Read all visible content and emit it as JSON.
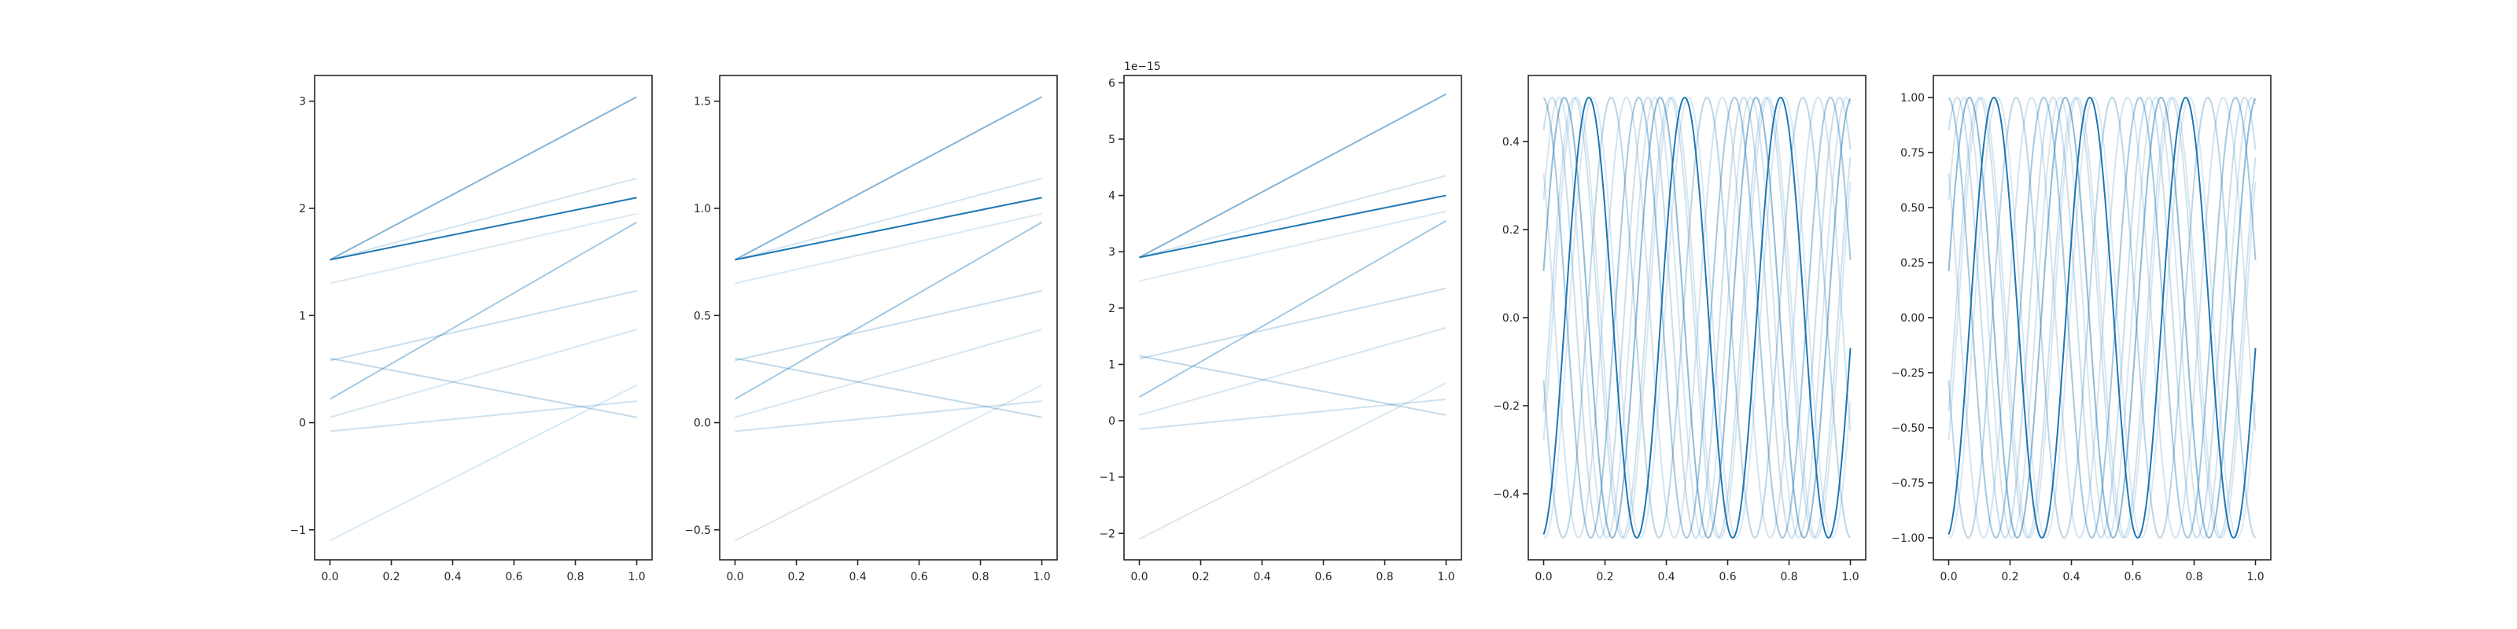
{
  "chart_data": [
    {
      "type": "line",
      "xlim": [
        -0.05,
        1.05
      ],
      "ylim": [
        -1.28,
        3.24
      ],
      "xticks": [
        {
          "v": 0,
          "label": "0.0"
        },
        {
          "v": 0.2,
          "label": "0.2"
        },
        {
          "v": 0.4,
          "label": "0.4"
        },
        {
          "v": 0.6,
          "label": "0.6"
        },
        {
          "v": 0.8,
          "label": "0.8"
        },
        {
          "v": 1,
          "label": "1.0"
        }
      ],
      "yticks": [
        {
          "v": -1,
          "label": "−1"
        },
        {
          "v": 0,
          "label": "0"
        },
        {
          "v": 1,
          "label": "1"
        },
        {
          "v": 2,
          "label": "2"
        },
        {
          "v": 3,
          "label": "3"
        }
      ],
      "offset_label": "",
      "series": [
        {
          "x": [
            0,
            1
          ],
          "y": [
            -1.1,
            0.35
          ],
          "opacity": 0.16
        },
        {
          "x": [
            0,
            1
          ],
          "y": [
            -0.08,
            0.2
          ],
          "opacity": 0.22
        },
        {
          "x": [
            0,
            1
          ],
          "y": [
            0.6,
            0.05
          ],
          "opacity": 0.28
        },
        {
          "x": [
            0,
            1
          ],
          "y": [
            0.05,
            0.87
          ],
          "opacity": 0.18
        },
        {
          "x": [
            0,
            1
          ],
          "y": [
            0.58,
            1.23
          ],
          "opacity": 0.24
        },
        {
          "x": [
            0,
            1
          ],
          "y": [
            1.3,
            1.95
          ],
          "opacity": 0.16
        },
        {
          "x": [
            0,
            1
          ],
          "y": [
            1.52,
            2.28
          ],
          "opacity": 0.2
        },
        {
          "x": [
            0,
            1
          ],
          "y": [
            0.22,
            1.87
          ],
          "opacity": 0.4
        },
        {
          "x": [
            0,
            1
          ],
          "y": [
            1.52,
            3.04
          ],
          "opacity": 0.55
        },
        {
          "x": [
            0,
            1
          ],
          "y": [
            1.52,
            2.1
          ],
          "opacity": 1.0
        }
      ]
    },
    {
      "type": "line",
      "xlim": [
        -0.05,
        1.05
      ],
      "ylim": [
        -0.64,
        1.62
      ],
      "xticks": [
        {
          "v": 0,
          "label": "0.0"
        },
        {
          "v": 0.2,
          "label": "0.2"
        },
        {
          "v": 0.4,
          "label": "0.4"
        },
        {
          "v": 0.6,
          "label": "0.6"
        },
        {
          "v": 0.8,
          "label": "0.8"
        },
        {
          "v": 1,
          "label": "1.0"
        }
      ],
      "yticks": [
        {
          "v": -0.5,
          "label": "−0.5"
        },
        {
          "v": 0,
          "label": "0.0"
        },
        {
          "v": 0.5,
          "label": "0.5"
        },
        {
          "v": 1,
          "label": "1.0"
        },
        {
          "v": 1.5,
          "label": "1.5"
        }
      ],
      "offset_label": "",
      "series": [
        {
          "x": [
            0,
            1
          ],
          "y": [
            -0.55,
            0.175
          ],
          "opacity": 0.16
        },
        {
          "x": [
            0,
            1
          ],
          "y": [
            -0.04,
            0.1
          ],
          "opacity": 0.22
        },
        {
          "x": [
            0,
            1
          ],
          "y": [
            0.3,
            0.025
          ],
          "opacity": 0.28
        },
        {
          "x": [
            0,
            1
          ],
          "y": [
            0.025,
            0.435
          ],
          "opacity": 0.18
        },
        {
          "x": [
            0,
            1
          ],
          "y": [
            0.29,
            0.615
          ],
          "opacity": 0.24
        },
        {
          "x": [
            0,
            1
          ],
          "y": [
            0.65,
            0.975
          ],
          "opacity": 0.16
        },
        {
          "x": [
            0,
            1
          ],
          "y": [
            0.76,
            1.14
          ],
          "opacity": 0.2
        },
        {
          "x": [
            0,
            1
          ],
          "y": [
            0.11,
            0.935
          ],
          "opacity": 0.4
        },
        {
          "x": [
            0,
            1
          ],
          "y": [
            0.76,
            1.52
          ],
          "opacity": 0.55
        },
        {
          "x": [
            0,
            1
          ],
          "y": [
            0.76,
            1.05
          ],
          "opacity": 1.0
        }
      ]
    },
    {
      "type": "line",
      "xlim": [
        -0.05,
        1.05
      ],
      "ylim": [
        -2.47,
        6.13
      ],
      "xticks": [
        {
          "v": 0,
          "label": "0.0"
        },
        {
          "v": 0.2,
          "label": "0.2"
        },
        {
          "v": 0.4,
          "label": "0.4"
        },
        {
          "v": 0.6,
          "label": "0.6"
        },
        {
          "v": 0.8,
          "label": "0.8"
        },
        {
          "v": 1,
          "label": "1.0"
        }
      ],
      "yticks": [
        {
          "v": -2,
          "label": "−2"
        },
        {
          "v": -1,
          "label": "−1"
        },
        {
          "v": 0,
          "label": "0"
        },
        {
          "v": 1,
          "label": "1"
        },
        {
          "v": 2,
          "label": "2"
        },
        {
          "v": 3,
          "label": "3"
        },
        {
          "v": 4,
          "label": "4"
        },
        {
          "v": 5,
          "label": "5"
        },
        {
          "v": 6,
          "label": "6"
        }
      ],
      "offset_label": "1e−15",
      "series": [
        {
          "x": [
            0,
            1
          ],
          "y": [
            -2.1,
            0.67
          ],
          "opacity": 0.16
        },
        {
          "x": [
            0,
            1
          ],
          "y": [
            -0.15,
            0.38
          ],
          "opacity": 0.22
        },
        {
          "x": [
            0,
            1
          ],
          "y": [
            1.15,
            0.1
          ],
          "opacity": 0.28
        },
        {
          "x": [
            0,
            1
          ],
          "y": [
            0.1,
            1.65
          ],
          "opacity": 0.18
        },
        {
          "x": [
            0,
            1
          ],
          "y": [
            1.1,
            2.35
          ],
          "opacity": 0.24
        },
        {
          "x": [
            0,
            1
          ],
          "y": [
            2.48,
            3.72
          ],
          "opacity": 0.16
        },
        {
          "x": [
            0,
            1
          ],
          "y": [
            2.9,
            4.35
          ],
          "opacity": 0.2
        },
        {
          "x": [
            0,
            1
          ],
          "y": [
            0.42,
            3.55
          ],
          "opacity": 0.4
        },
        {
          "x": [
            0,
            1
          ],
          "y": [
            2.9,
            5.8
          ],
          "opacity": 0.55
        },
        {
          "x": [
            0,
            1
          ],
          "y": [
            2.9,
            4.0
          ],
          "opacity": 1.0
        }
      ]
    },
    {
      "type": "line",
      "xlim": [
        -0.05,
        1.05
      ],
      "ylim": [
        -0.55,
        0.55
      ],
      "xticks": [
        {
          "v": 0,
          "label": "0.0"
        },
        {
          "v": 0.2,
          "label": "0.2"
        },
        {
          "v": 0.4,
          "label": "0.4"
        },
        {
          "v": 0.6,
          "label": "0.6"
        },
        {
          "v": 0.8,
          "label": "0.8"
        },
        {
          "v": 1,
          "label": "1.0"
        }
      ],
      "yticks": [
        {
          "v": -0.4,
          "label": "−0.4"
        },
        {
          "v": -0.2,
          "label": "−0.2"
        },
        {
          "v": 0,
          "label": "0.0"
        },
        {
          "v": 0.2,
          "label": "0.2"
        },
        {
          "v": 0.4,
          "label": "0.4"
        }
      ],
      "offset_label": "",
      "sine": {
        "amp": 0.5,
        "freq": 3.2,
        "phases": [
          {
            "x0": 0.46,
            "opacity": 1.0
          },
          {
            "x0": 0.38,
            "opacity": 0.5
          },
          {
            "x0": 0.31,
            "opacity": 0.4
          },
          {
            "x0": 0.22,
            "opacity": 0.3
          },
          {
            "x0": 0.1,
            "opacity": 0.22
          },
          {
            "x0": 0.05,
            "opacity": 0.18
          },
          {
            "x0": 0.16,
            "opacity": 0.16
          },
          {
            "x0": 0.27,
            "opacity": 0.2
          },
          {
            "x0": 0.34,
            "opacity": 0.24
          },
          {
            "x0": 0.42,
            "opacity": 0.18
          }
        ]
      }
    },
    {
      "type": "line",
      "xlim": [
        -0.05,
        1.05
      ],
      "ylim": [
        -1.1,
        1.1
      ],
      "xticks": [
        {
          "v": 0,
          "label": "0.0"
        },
        {
          "v": 0.2,
          "label": "0.2"
        },
        {
          "v": 0.4,
          "label": "0.4"
        },
        {
          "v": 0.6,
          "label": "0.6"
        },
        {
          "v": 0.8,
          "label": "0.8"
        },
        {
          "v": 1,
          "label": "1.0"
        }
      ],
      "yticks": [
        {
          "v": -1,
          "label": "−1.00"
        },
        {
          "v": -0.75,
          "label": "−0.75"
        },
        {
          "v": -0.5,
          "label": "−0.50"
        },
        {
          "v": -0.25,
          "label": "−0.25"
        },
        {
          "v": 0,
          "label": "0.00"
        },
        {
          "v": 0.25,
          "label": "0.25"
        },
        {
          "v": 0.5,
          "label": "0.50"
        },
        {
          "v": 0.75,
          "label": "0.75"
        },
        {
          "v": 1,
          "label": "1.00"
        }
      ],
      "offset_label": "",
      "sine": {
        "amp": 1.0,
        "freq": 3.2,
        "phases": [
          {
            "x0": 0.46,
            "opacity": 1.0
          },
          {
            "x0": 0.38,
            "opacity": 0.5
          },
          {
            "x0": 0.31,
            "opacity": 0.4
          },
          {
            "x0": 0.22,
            "opacity": 0.3
          },
          {
            "x0": 0.1,
            "opacity": 0.22
          },
          {
            "x0": 0.05,
            "opacity": 0.18
          },
          {
            "x0": 0.16,
            "opacity": 0.16
          },
          {
            "x0": 0.27,
            "opacity": 0.2
          },
          {
            "x0": 0.34,
            "opacity": 0.24
          },
          {
            "x0": 0.42,
            "opacity": 0.18
          }
        ]
      }
    }
  ],
  "line_color": "#1f77b4",
  "axis_color": "#262626"
}
